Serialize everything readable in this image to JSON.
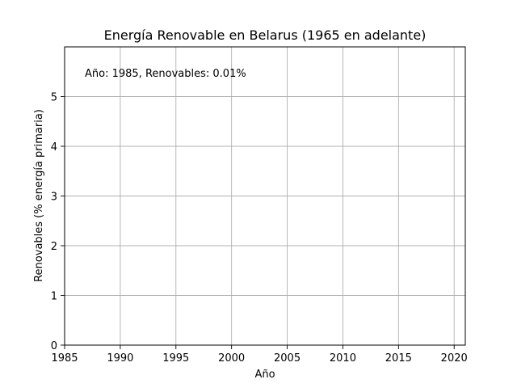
{
  "chart_data": {
    "type": "line",
    "title": "Energía Renovable en Belarus (1965 en adelante)",
    "xlabel": "Año",
    "ylabel": "Renovables (% energía primaria)",
    "xlim": [
      1985,
      2021
    ],
    "ylim": [
      0,
      6
    ],
    "xticks": [
      1985,
      1990,
      1995,
      2000,
      2005,
      2010,
      2015,
      2020
    ],
    "yticks": [
      0,
      1,
      2,
      3,
      4,
      5
    ],
    "grid": true,
    "series": [
      {
        "x": [],
        "y": []
      }
    ],
    "annotation": "Año: 1985, Renovables: 0.01%"
  }
}
